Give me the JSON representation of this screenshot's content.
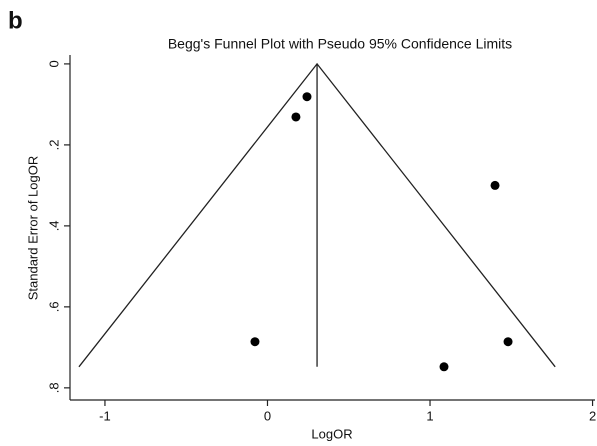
{
  "panel_label": "b",
  "chart_data": {
    "type": "scatter",
    "title": "Begg's Funnel Plot with Pseudo 95% Confidence Limits",
    "x_label": "LogOR",
    "y_label": "Standard Error of LogOR",
    "x": [
      0.243,
      0.175,
      1.4,
      -0.077,
      1.086,
      1.48
    ],
    "values": [
      0.081,
      0.131,
      0.3,
      0.686,
      0.748,
      0.686
    ],
    "color": "#000000",
    "lines": [
      {
        "x": [
          -1.16,
          0.305,
          1.77
        ],
        "y": [
          0.748,
          0,
          0.748
        ]
      },
      {
        "x": [
          0.305,
          0.305
        ],
        "y": [
          0,
          0.748
        ]
      }
    ],
    "xlim": [
      -1.215,
      2.015
    ],
    "xticks": [
      -1,
      0,
      1,
      2
    ],
    "ylim": [
      -0.022,
      0.83
    ],
    "y_reversed": true,
    "yticks": [
      0,
      {
        "value": 0.2,
        "label": ".2"
      },
      {
        "value": 0.4,
        "label": ".4"
      },
      {
        "value": 0.6,
        "label": ".6"
      },
      {
        "value": 0.8,
        "label": ".8"
      }
    ],
    "grid": false
  }
}
